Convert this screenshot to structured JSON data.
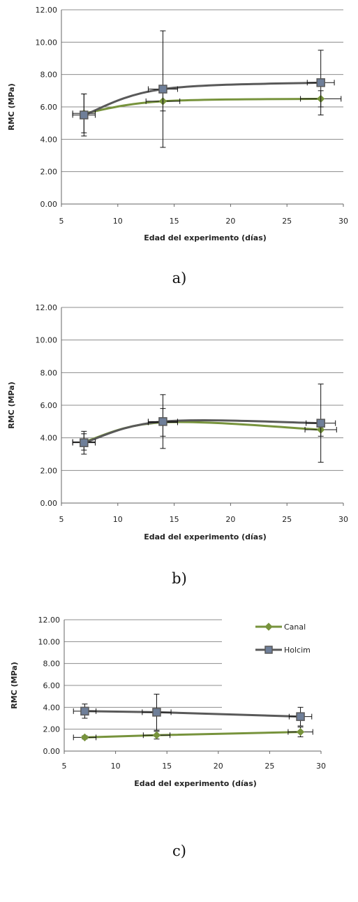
{
  "colors": {
    "canal": "#77933c",
    "holcim": "#595959",
    "marker_fill_holcim": "#6f7f99",
    "grid": "#8c8c8c"
  },
  "chart_data": [
    {
      "type": "line",
      "panel_label": "a)",
      "xlabel": "Edad del experimento (días)",
      "ylabel": "RMC (MPa)",
      "xlim": [
        5,
        30
      ],
      "ylim": [
        0,
        12
      ],
      "x_ticks": [
        "5",
        "10",
        "15",
        "20",
        "25",
        "30"
      ],
      "y_ticks": [
        "0.00",
        "2.00",
        "4.00",
        "6.00",
        "8.00",
        "10.00",
        "12.00"
      ],
      "grid": "horizontal",
      "legend": "none",
      "x": [
        7,
        14,
        28
      ],
      "series": [
        {
          "values": [
            5.6,
            6.35,
            6.5
          ],
          "y_err": [
            1.2,
            0.6,
            0.5
          ],
          "x_err": [
            1.0,
            1.5,
            1.8
          ]
        },
        {
          "values": [
            5.5,
            7.1,
            7.5
          ],
          "y_err": [
            1.3,
            3.6,
            2.0
          ],
          "x_err": [
            1.0,
            1.3,
            1.2
          ]
        }
      ]
    },
    {
      "type": "line",
      "panel_label": "b)",
      "xlabel": "Edad del experimento (días)",
      "ylabel": "RMC (MPa)",
      "xlim": [
        5,
        30
      ],
      "ylim": [
        0,
        12
      ],
      "x_ticks": [
        "5",
        "10",
        "15",
        "20",
        "25",
        "30"
      ],
      "y_ticks": [
        "0.00",
        "2.00",
        "4.00",
        "6.00",
        "8.00",
        "10.00",
        "12.00"
      ],
      "grid": "horizontal",
      "legend": "none",
      "x": [
        7,
        14,
        28
      ],
      "series": [
        {
          "values": [
            3.75,
            4.95,
            4.5
          ],
          "y_err": [
            0.5,
            0.85,
            0.4
          ],
          "x_err": [
            1.0,
            1.3,
            1.4
          ]
        },
        {
          "values": [
            3.7,
            5.0,
            4.9
          ],
          "y_err": [
            0.7,
            1.65,
            2.4
          ],
          "x_err": [
            1.0,
            1.3,
            1.3
          ]
        }
      ]
    },
    {
      "type": "line",
      "panel_label": "c)",
      "xlabel": "Edad del experimento (días)",
      "ylabel": "RMC (MPa)",
      "xlim": [
        5,
        30
      ],
      "ylim": [
        0,
        12
      ],
      "x_ticks": [
        "5",
        "10",
        "15",
        "20",
        "25",
        "30"
      ],
      "y_ticks": [
        "0.00",
        "2.00",
        "4.00",
        "6.00",
        "8.00",
        "10.00",
        "12.00"
      ],
      "grid": "horizontal",
      "legend": "top-right",
      "x": [
        7,
        14,
        28
      ],
      "series": [
        {
          "name": "Canal",
          "values": [
            1.25,
            1.45,
            1.75
          ],
          "y_err": [
            0.15,
            0.35,
            0.45
          ],
          "x_err": [
            1.1,
            1.3,
            1.2
          ]
        },
        {
          "name": "Holcim",
          "values": [
            3.65,
            3.55,
            3.15
          ],
          "y_err": [
            0.65,
            1.65,
            0.85
          ],
          "x_err": [
            1.1,
            1.4,
            1.1
          ]
        }
      ]
    }
  ]
}
